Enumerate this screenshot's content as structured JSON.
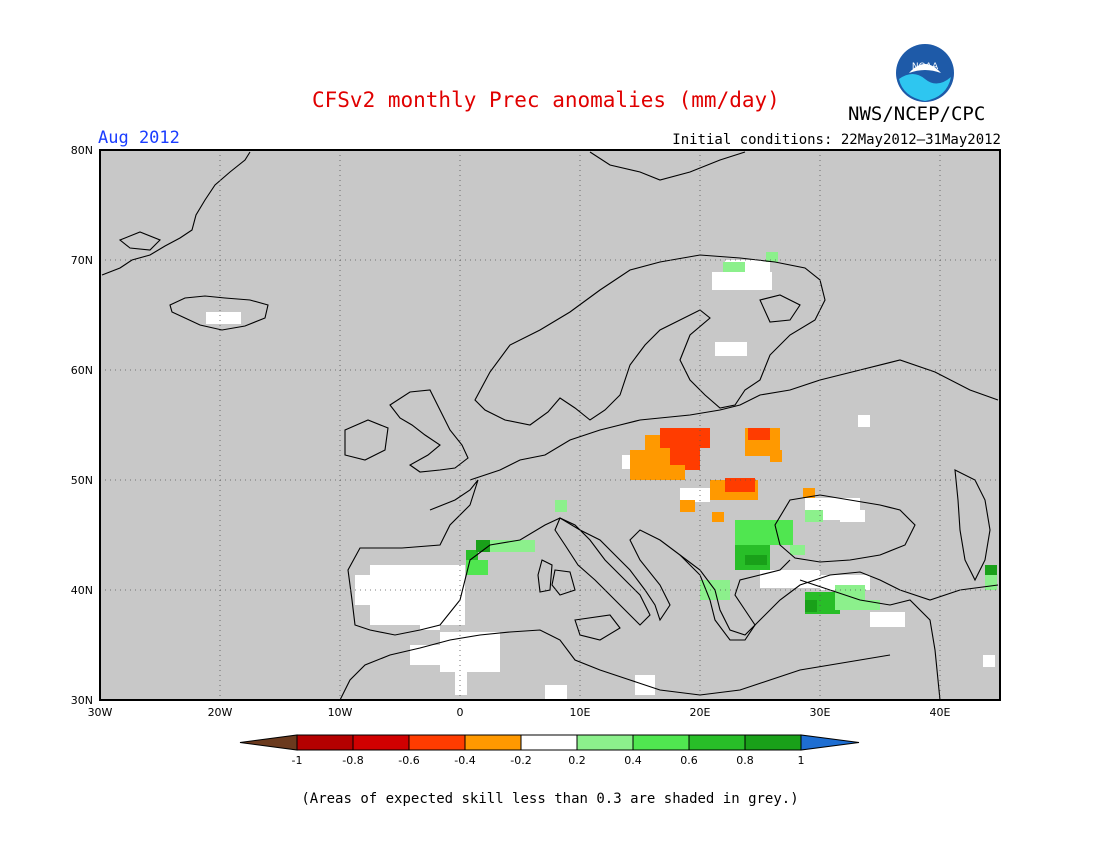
{
  "header": {
    "title": "CFSv2 monthly Prec anomalies (mm/day)",
    "agency": "NWS/NCEP/CPC",
    "month": "Aug 2012",
    "initial_conditions": "Initial conditions: 22May2012–31May2012",
    "logo_text": "NOAA"
  },
  "map": {
    "region": "Europe",
    "lon_range": [
      -30,
      45
    ],
    "lat_range": [
      30,
      80
    ],
    "background_color": "#c8c8c8",
    "lat_ticks": [
      "80N",
      "70N",
      "60N",
      "50N",
      "40N",
      "30N"
    ],
    "lon_ticks": [
      "30W",
      "20W",
      "10W",
      "0",
      "10E",
      "20E",
      "30E",
      "40E"
    ],
    "gridlines": "dotted"
  },
  "legend": {
    "tick_labels": [
      "-1",
      "-0.8",
      "-0.6",
      "-0.4",
      "-0.2",
      "0.2",
      "0.4",
      "0.6",
      "0.8",
      "1"
    ],
    "colors": [
      "#6b3a1e",
      "#b40000",
      "#d10000",
      "#ff3c00",
      "#ff9900",
      "#ffffff",
      "#8cf08c",
      "#50e650",
      "#28be28",
      "#19a019",
      "#1e6ed2"
    ]
  },
  "footnote": "(Areas of expected skill less than 0.3 are shaded in grey.)"
}
